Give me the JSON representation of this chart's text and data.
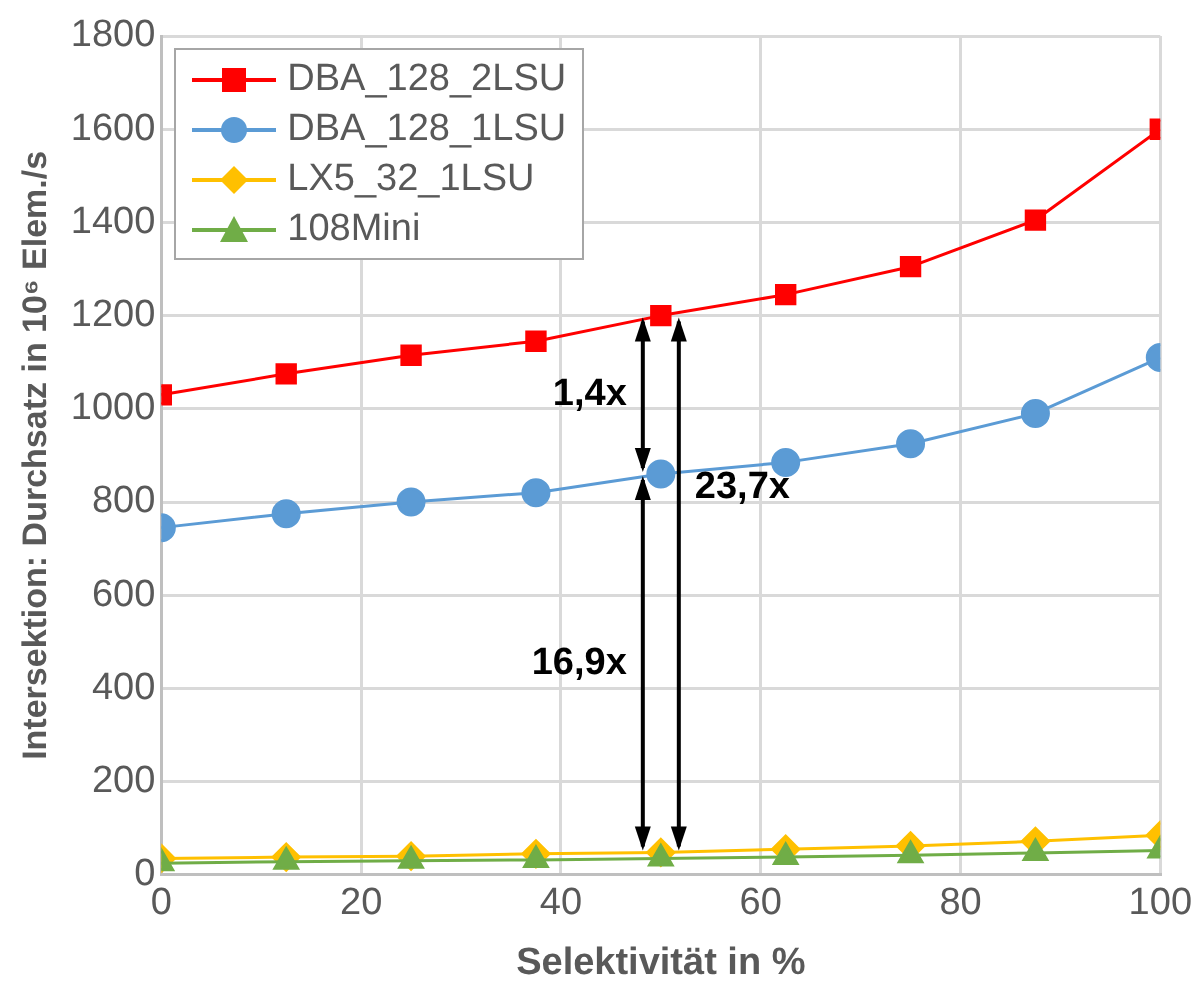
{
  "chart_data": {
    "type": "line",
    "xlabel": "Selektivität in %",
    "ylabel": "Intersektion: Durchsatz in 10⁶ Elem./s",
    "x": [
      0,
      12.5,
      25,
      37.5,
      50,
      62.5,
      75,
      87.5,
      100
    ],
    "series": [
      {
        "name": "DBA_128_2LSU",
        "color": "#ff0000",
        "marker": "square",
        "values": [
          1030,
          1075,
          1115,
          1145,
          1200,
          1245,
          1305,
          1405,
          1600
        ]
      },
      {
        "name": "DBA_128_1LSU",
        "color": "#5b9bd5",
        "marker": "circle",
        "values": [
          745,
          775,
          800,
          820,
          860,
          885,
          925,
          990,
          1110
        ]
      },
      {
        "name": "LX5_32_1LSU",
        "color": "#ffc000",
        "marker": "diamond",
        "values": [
          35,
          38,
          40,
          45,
          48,
          55,
          62,
          72,
          85
        ]
      },
      {
        "name": "108Mini",
        "color": "#70ad47",
        "marker": "triangle",
        "values": [
          25,
          28,
          30,
          32,
          35,
          38,
          42,
          47,
          52
        ]
      }
    ],
    "xlim": [
      0,
      100
    ],
    "xticks": [
      0,
      20,
      40,
      60,
      80,
      100
    ],
    "ylim": [
      0,
      1800
    ],
    "yticks": [
      0,
      200,
      400,
      600,
      800,
      1000,
      1200,
      1400,
      1600,
      1800
    ],
    "annotations": [
      "1,4x",
      "16,9x",
      "23,7x"
    ],
    "grid": true,
    "legend": "top left",
    "line_style": "solid"
  }
}
